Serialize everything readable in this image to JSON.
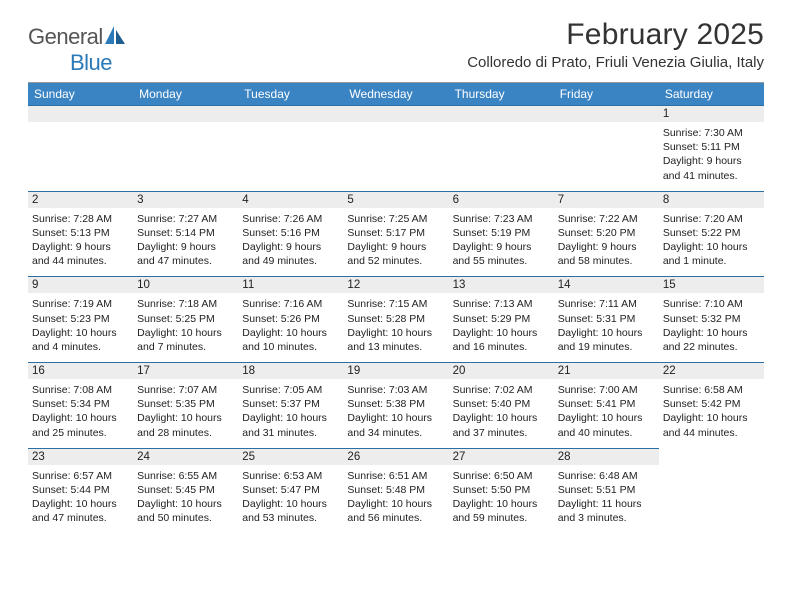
{
  "logo": {
    "text_gray": "General",
    "text_blue": "Blue"
  },
  "title": "February 2025",
  "location": "Colloredo di Prato, Friuli Venezia Giulia, Italy",
  "colors": {
    "header_bg": "#3b84c4",
    "cell_border": "#2a70a8",
    "daynum_bg": "#ededed",
    "text": "#222222",
    "logo_gray": "#555555",
    "logo_blue": "#2a7ab9",
    "background": "#ffffff"
  },
  "typography": {
    "title_fontsize": 30,
    "location_fontsize": 15,
    "weekday_fontsize": 12,
    "day_fontsize": 10.5
  },
  "weekdays": [
    "Sunday",
    "Monday",
    "Tuesday",
    "Wednesday",
    "Thursday",
    "Friday",
    "Saturday"
  ],
  "weeks": [
    [
      null,
      null,
      null,
      null,
      null,
      null,
      {
        "n": "1",
        "sunrise": "7:30 AM",
        "sunset": "5:11 PM",
        "daylight": "9 hours and 41 minutes."
      }
    ],
    [
      {
        "n": "2",
        "sunrise": "7:28 AM",
        "sunset": "5:13 PM",
        "daylight": "9 hours and 44 minutes."
      },
      {
        "n": "3",
        "sunrise": "7:27 AM",
        "sunset": "5:14 PM",
        "daylight": "9 hours and 47 minutes."
      },
      {
        "n": "4",
        "sunrise": "7:26 AM",
        "sunset": "5:16 PM",
        "daylight": "9 hours and 49 minutes."
      },
      {
        "n": "5",
        "sunrise": "7:25 AM",
        "sunset": "5:17 PM",
        "daylight": "9 hours and 52 minutes."
      },
      {
        "n": "6",
        "sunrise": "7:23 AM",
        "sunset": "5:19 PM",
        "daylight": "9 hours and 55 minutes."
      },
      {
        "n": "7",
        "sunrise": "7:22 AM",
        "sunset": "5:20 PM",
        "daylight": "9 hours and 58 minutes."
      },
      {
        "n": "8",
        "sunrise": "7:20 AM",
        "sunset": "5:22 PM",
        "daylight": "10 hours and 1 minute."
      }
    ],
    [
      {
        "n": "9",
        "sunrise": "7:19 AM",
        "sunset": "5:23 PM",
        "daylight": "10 hours and 4 minutes."
      },
      {
        "n": "10",
        "sunrise": "7:18 AM",
        "sunset": "5:25 PM",
        "daylight": "10 hours and 7 minutes."
      },
      {
        "n": "11",
        "sunrise": "7:16 AM",
        "sunset": "5:26 PM",
        "daylight": "10 hours and 10 minutes."
      },
      {
        "n": "12",
        "sunrise": "7:15 AM",
        "sunset": "5:28 PM",
        "daylight": "10 hours and 13 minutes."
      },
      {
        "n": "13",
        "sunrise": "7:13 AM",
        "sunset": "5:29 PM",
        "daylight": "10 hours and 16 minutes."
      },
      {
        "n": "14",
        "sunrise": "7:11 AM",
        "sunset": "5:31 PM",
        "daylight": "10 hours and 19 minutes."
      },
      {
        "n": "15",
        "sunrise": "7:10 AM",
        "sunset": "5:32 PM",
        "daylight": "10 hours and 22 minutes."
      }
    ],
    [
      {
        "n": "16",
        "sunrise": "7:08 AM",
        "sunset": "5:34 PM",
        "daylight": "10 hours and 25 minutes."
      },
      {
        "n": "17",
        "sunrise": "7:07 AM",
        "sunset": "5:35 PM",
        "daylight": "10 hours and 28 minutes."
      },
      {
        "n": "18",
        "sunrise": "7:05 AM",
        "sunset": "5:37 PM",
        "daylight": "10 hours and 31 minutes."
      },
      {
        "n": "19",
        "sunrise": "7:03 AM",
        "sunset": "5:38 PM",
        "daylight": "10 hours and 34 minutes."
      },
      {
        "n": "20",
        "sunrise": "7:02 AM",
        "sunset": "5:40 PM",
        "daylight": "10 hours and 37 minutes."
      },
      {
        "n": "21",
        "sunrise": "7:00 AM",
        "sunset": "5:41 PM",
        "daylight": "10 hours and 40 minutes."
      },
      {
        "n": "22",
        "sunrise": "6:58 AM",
        "sunset": "5:42 PM",
        "daylight": "10 hours and 44 minutes."
      }
    ],
    [
      {
        "n": "23",
        "sunrise": "6:57 AM",
        "sunset": "5:44 PM",
        "daylight": "10 hours and 47 minutes."
      },
      {
        "n": "24",
        "sunrise": "6:55 AM",
        "sunset": "5:45 PM",
        "daylight": "10 hours and 50 minutes."
      },
      {
        "n": "25",
        "sunrise": "6:53 AM",
        "sunset": "5:47 PM",
        "daylight": "10 hours and 53 minutes."
      },
      {
        "n": "26",
        "sunrise": "6:51 AM",
        "sunset": "5:48 PM",
        "daylight": "10 hours and 56 minutes."
      },
      {
        "n": "27",
        "sunrise": "6:50 AM",
        "sunset": "5:50 PM",
        "daylight": "10 hours and 59 minutes."
      },
      {
        "n": "28",
        "sunrise": "6:48 AM",
        "sunset": "5:51 PM",
        "daylight": "11 hours and 3 minutes."
      },
      null
    ]
  ],
  "labels": {
    "sunrise": "Sunrise:",
    "sunset": "Sunset:",
    "daylight": "Daylight:"
  }
}
